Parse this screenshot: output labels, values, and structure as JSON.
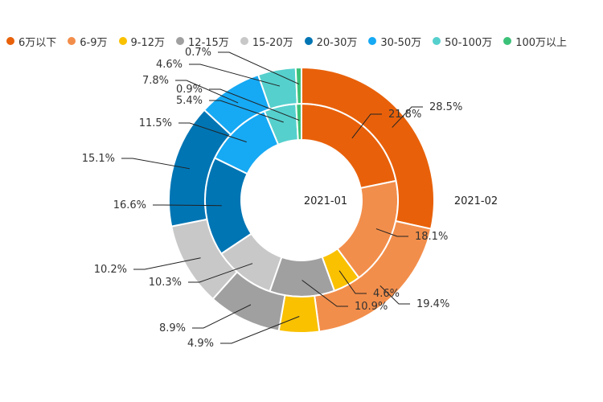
{
  "chart_data": {
    "type": "pie",
    "categories": [
      "6万以下",
      "6-9万",
      "9-12万",
      "12-15万",
      "15-20万",
      "20-30万",
      "30-50万",
      "50-100万",
      "100万以上"
    ],
    "colors": [
      "#e8610a",
      "#f28e4b",
      "#f9c100",
      "#a0a0a0",
      "#c8c8c8",
      "#0075b4",
      "#16a9f4",
      "#55d0cd",
      "#3cc179"
    ],
    "series": [
      {
        "name": "2021-01",
        "values": [
          21.8,
          18.1,
          4.6,
          10.9,
          10.3,
          16.6,
          11.5,
          5.4,
          0.9
        ],
        "labels": [
          "21.8%",
          "18.1%",
          "4.6%",
          "10.9%",
          "10.3%",
          "16.6%",
          "11.5%",
          "5.4%",
          "0.9%"
        ]
      },
      {
        "name": "2021-02",
        "values": [
          28.5,
          19.4,
          4.9,
          8.9,
          10.2,
          15.1,
          7.8,
          4.6,
          0.7
        ],
        "labels": [
          "28.5%",
          "19.4%",
          "4.9%",
          "8.9%",
          "10.2%",
          "15.1%",
          "7.8%",
          "4.6%",
          "0.7%"
        ]
      }
    ],
    "legend_position": "top"
  }
}
